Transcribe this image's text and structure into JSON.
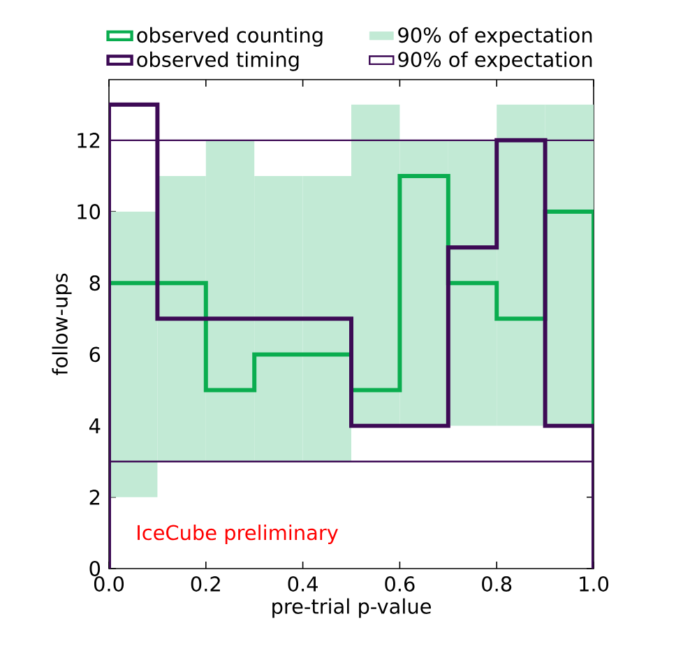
{
  "chart_data": {
    "type": "histogram",
    "bins": [
      0.0,
      0.1,
      0.2,
      0.3,
      0.4,
      0.5,
      0.6,
      0.7,
      0.8,
      0.9,
      1.0
    ],
    "series": [
      {
        "type": "bar",
        "name": "90% of expectation",
        "color": "#c2ead5",
        "x": [
          0.05,
          0.15,
          0.25,
          0.35,
          0.45,
          0.55,
          0.65,
          0.75,
          0.85,
          0.95
        ],
        "base": [
          2,
          3,
          3,
          3,
          3,
          4,
          4,
          4,
          4,
          4
        ],
        "values": [
          8,
          8,
          9,
          8,
          8,
          9,
          8,
          8,
          9,
          9
        ]
      },
      {
        "name": "observed counting",
        "color": "#0aad4f",
        "values": [
          8,
          8,
          5,
          6,
          6,
          5,
          11,
          8,
          7,
          10
        ]
      },
      {
        "name": "observed timing",
        "color": "#3d0a55",
        "values": [
          13,
          7,
          7,
          7,
          7,
          4,
          4,
          9,
          12,
          4
        ]
      }
    ],
    "ref_lines": [
      {
        "axis": "y",
        "value": 3,
        "label": "90% of expectation",
        "color": "#3d0a55"
      },
      {
        "axis": "y",
        "value": 12,
        "color": "#3d0a55"
      }
    ],
    "xlim": [
      0,
      1
    ],
    "ylim": [
      0,
      13.7
    ],
    "xticks": [
      {
        "value": 0,
        "label": "0.0"
      },
      {
        "value": 0.2,
        "label": "0.2"
      },
      {
        "value": 0.4,
        "label": "0.4"
      },
      {
        "value": 0.6,
        "label": "0.6"
      },
      {
        "value": 0.8,
        "label": "0.8"
      },
      {
        "value": 1.0,
        "label": "1.0"
      }
    ],
    "yticks": [
      0,
      2,
      4,
      6,
      8,
      10,
      12
    ],
    "xlabel": "pre-trial p-value",
    "ylabel": "follow-ups",
    "annotations": [
      "IceCube preliminary"
    ],
    "legend": "top"
  }
}
